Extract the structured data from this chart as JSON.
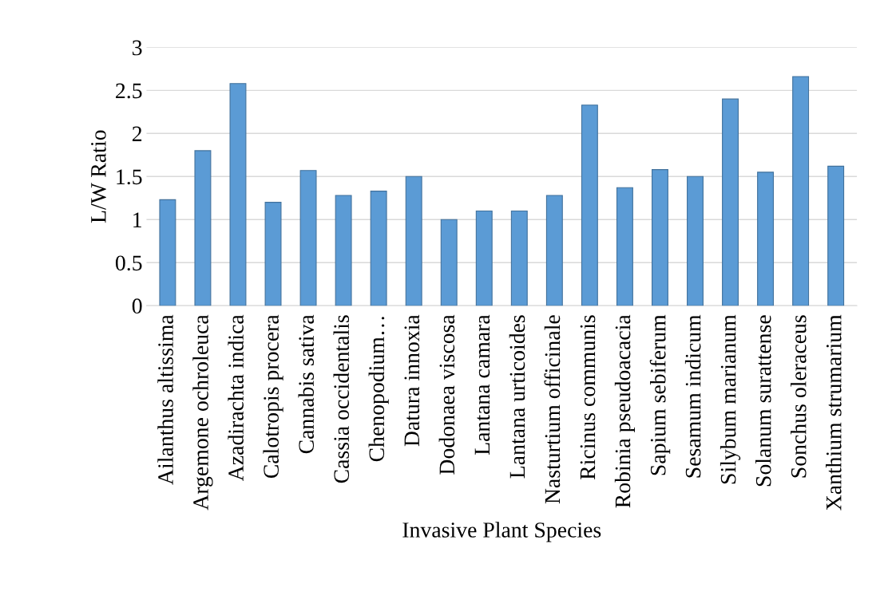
{
  "chart_data": {
    "type": "bar",
    "xlabel": "Invasive Plant Species",
    "ylabel": "L/W Ratio",
    "categories": [
      "Ailanthus altissima",
      "Argemone ochroleuca",
      "Azadirachta indica",
      "Calotropis procera",
      "Cannabis sativa",
      "Cassia occidentalis",
      "Chenopodium…",
      "Datura innoxia",
      "Dodonaea viscosa",
      "Lantana camara",
      "Lantana urticoides",
      "Nasturtium officinale",
      "Ricinus communis",
      "Robinia pseudoacacia",
      "Sapium sebiferum",
      "Sesamum indicum",
      "Silybum marianum",
      "Solanum surattense",
      "Sonchus oleraceus",
      "Xanthium strumarium"
    ],
    "values": [
      1.23,
      1.8,
      2.58,
      1.2,
      1.57,
      1.28,
      1.33,
      1.5,
      1.0,
      1.1,
      1.1,
      1.28,
      2.33,
      1.37,
      1.58,
      1.5,
      2.4,
      1.55,
      2.66,
      1.62
    ],
    "color": "#5b9bd5",
    "ylim": [
      0,
      3
    ],
    "yticks": [
      0,
      0.5,
      1,
      1.5,
      2,
      2.5,
      3
    ],
    "grid": "y"
  }
}
